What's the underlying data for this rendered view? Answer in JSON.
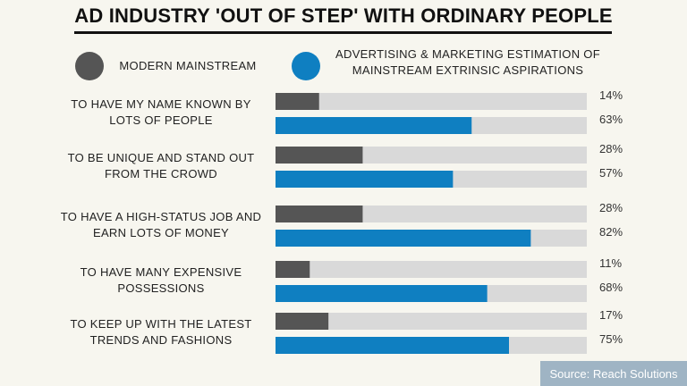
{
  "chart_data": {
    "type": "bar",
    "orientation": "horizontal",
    "title": "AD INDUSTRY 'OUT OF STEP' WITH ORDINARY PEOPLE",
    "categories": [
      [
        "TO HAVE MY NAME KNOWN BY",
        "LOTS OF PEOPLE"
      ],
      [
        "TO BE UNIQUE AND STAND OUT",
        "FROM THE CROWD"
      ],
      [
        "TO HAVE A HIGH-STATUS JOB AND",
        "EARN LOTS OF MONEY"
      ],
      [
        "TO HAVE MANY EXPENSIVE",
        "POSSESSIONS"
      ],
      [
        "TO KEEP UP WITH THE LATEST",
        "TRENDS AND FASHIONS"
      ]
    ],
    "series": [
      {
        "name": "MODERN MAINSTREAM",
        "color": "#555555",
        "values": [
          14,
          28,
          28,
          11,
          17
        ],
        "labels": [
          "14%",
          "28%",
          "28%",
          "11%",
          "17%"
        ]
      },
      {
        "name": "ADVERTISING & MARKETING ESTIMATION OF MAINSTREAM EXTRINSIC ASPIRATIONS",
        "name_lines": [
          "ADVERTISING & MARKETING ESTIMATION OF",
          "MAINSTREAM EXTRINSIC ASPIRATIONS"
        ],
        "color": "#0f7fc1",
        "values": [
          63,
          57,
          82,
          68,
          75
        ],
        "labels": [
          "63%",
          "57%",
          "82%",
          "68%",
          "75%"
        ]
      }
    ],
    "xlim": [
      0,
      100
    ],
    "track_color": "#d9d9d9",
    "grid": false,
    "legend": "top"
  },
  "source": "Source: Reach Solutions"
}
